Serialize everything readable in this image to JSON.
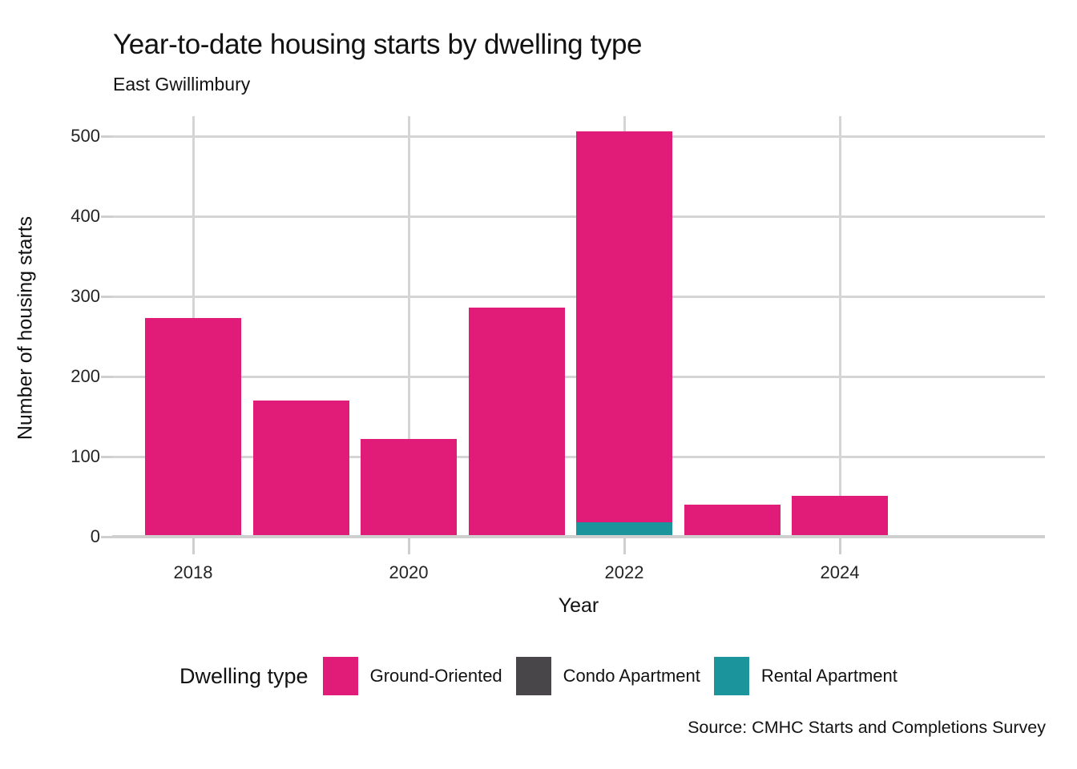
{
  "header": {
    "title": "Year-to-date housing starts by dwelling type",
    "subtitle": "East Gwillimbury"
  },
  "footer": {
    "source": "Source: CMHC Starts and Completions Survey"
  },
  "chart_data": {
    "type": "bar",
    "stacked": true,
    "title": "Year-to-date housing starts by dwelling type",
    "subtitle": "East Gwillimbury",
    "xlabel": "Year",
    "ylabel": "Number of housing starts",
    "legend_title": "Dwelling type",
    "legend_position": "bottom",
    "grid": true,
    "categories": [
      2018,
      2019,
      2020,
      2021,
      2022,
      2023,
      2024
    ],
    "x_tick_labels": [
      "2018",
      "2020",
      "2022",
      "2024"
    ],
    "x_grid_years": [
      2018,
      2020,
      2022,
      2024
    ],
    "y_ticks": [
      0,
      100,
      200,
      300,
      400,
      500
    ],
    "ylim": [
      0,
      525
    ],
    "series": [
      {
        "name": "Ground-Oriented",
        "color": "#e01b78",
        "values": [
          273,
          170,
          122,
          286,
          488,
          40,
          51
        ]
      },
      {
        "name": "Condo Apartment",
        "color": "#49464a",
        "values": [
          0,
          0,
          0,
          0,
          0,
          0,
          0
        ]
      },
      {
        "name": "Rental Apartment",
        "color": "#1b949c",
        "values": [
          0,
          0,
          0,
          0,
          18,
          0,
          0
        ]
      }
    ],
    "totals_by_year": [
      273,
      170,
      122,
      286,
      506,
      40,
      51
    ]
  }
}
